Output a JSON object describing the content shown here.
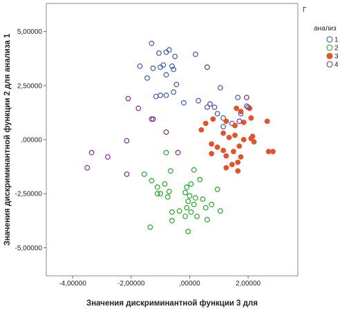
{
  "chart_data": {
    "type": "scatter",
    "xlabel": "Значения дискриминантной функции 3 для",
    "ylabel": "Значения дискриминантной функции 2 для анализа 1",
    "xlim": [
      -4.9,
      3.7
    ],
    "ylim": [
      -6.3,
      6.3
    ],
    "x_ticks": [
      -4,
      -2,
      0,
      2
    ],
    "x_tick_labels": [
      "-4,00000",
      "-2,00000",
      ",00000",
      "2,00000"
    ],
    "y_ticks": [
      5,
      2.5,
      0,
      -2.5,
      -5
    ],
    "y_tick_labels": [
      "5,00000",
      "2,50000",
      ",00000",
      "-2,50000",
      "-5,00000"
    ],
    "grid": false,
    "legend": {
      "title_top": "Г",
      "title": "анализ",
      "position": "right"
    },
    "series": [
      {
        "name": "1",
        "color": "#3a5aa8",
        "filled": false,
        "points": [
          [
            -1.3,
            4.45
          ],
          [
            -0.8,
            4.05
          ],
          [
            -0.7,
            4.15
          ],
          [
            -0.5,
            3.85
          ],
          [
            -0.9,
            3.45
          ],
          [
            -0.6,
            3.4
          ],
          [
            -1.7,
            3.4
          ],
          [
            -1.25,
            3.3
          ],
          [
            -1.0,
            3.35
          ],
          [
            0.2,
            3.95
          ],
          [
            -1.05,
            4.0
          ],
          [
            -1.45,
            2.85
          ],
          [
            -0.8,
            3.0
          ],
          [
            -0.55,
            3.25
          ],
          [
            -0.45,
            2.55
          ],
          [
            -0.55,
            2.2
          ],
          [
            -0.2,
            1.7
          ],
          [
            0.3,
            1.8
          ],
          [
            -0.8,
            2.05
          ],
          [
            -1.15,
            2.0
          ],
          [
            -1.0,
            2.05
          ],
          [
            0.6,
            1.5
          ],
          [
            1.05,
            2.4
          ],
          [
            1.65,
            1.95
          ],
          [
            0.85,
            1.5
          ],
          [
            0.95,
            1.2
          ],
          [
            1.15,
            1.0
          ],
          [
            1.45,
            0.75
          ],
          [
            1.75,
            1.2
          ],
          [
            1.15,
            0.6
          ],
          [
            1.95,
            1.55
          ]
        ]
      },
      {
        "name": "2",
        "color": "#22a32a",
        "filled": false,
        "points": [
          [
            -1.55,
            -1.6
          ],
          [
            -1.3,
            -1.9
          ],
          [
            -1.1,
            -2.2
          ],
          [
            -0.85,
            -2.05
          ],
          [
            -0.7,
            -2.4
          ],
          [
            -0.65,
            -1.45
          ],
          [
            -0.8,
            -0.6
          ],
          [
            -1.0,
            -2.5
          ],
          [
            -0.75,
            -2.65
          ],
          [
            -0.1,
            -2.2
          ],
          [
            0.05,
            -2.05
          ],
          [
            0.15,
            -1.4
          ],
          [
            0.35,
            -1.85
          ],
          [
            -0.15,
            -2.45
          ],
          [
            0.0,
            -2.6
          ],
          [
            0.2,
            -2.7
          ],
          [
            -0.05,
            -2.85
          ],
          [
            0.45,
            -2.75
          ],
          [
            0.15,
            -3.0
          ],
          [
            -0.1,
            -3.15
          ],
          [
            0.05,
            -3.35
          ],
          [
            0.55,
            -3.15
          ],
          [
            0.75,
            -3.0
          ],
          [
            0.95,
            -2.3
          ],
          [
            1.05,
            -3.3
          ],
          [
            -0.6,
            -3.35
          ],
          [
            -0.35,
            -3.3
          ],
          [
            -0.15,
            -3.55
          ],
          [
            0.25,
            -3.55
          ],
          [
            -0.6,
            -3.75
          ],
          [
            0.6,
            -3.7
          ],
          [
            -1.35,
            -4.05
          ],
          [
            -0.05,
            -4.25
          ],
          [
            -1.1,
            -2.5
          ]
        ]
      },
      {
        "name": "3",
        "color": "#e0542c",
        "filled": true,
        "points": [
          [
            0.4,
            0.45
          ],
          [
            0.55,
            0.75
          ],
          [
            0.8,
            0.95
          ],
          [
            1.25,
            0.85
          ],
          [
            1.55,
            0.65
          ],
          [
            1.85,
            0.8
          ],
          [
            1.75,
            1.3
          ],
          [
            1.6,
            1.45
          ],
          [
            2.05,
            1.45
          ],
          [
            2.1,
            1.0
          ],
          [
            2.65,
            0.85
          ],
          [
            1.15,
            0.3
          ],
          [
            1.35,
            0.1
          ],
          [
            1.55,
            0.2
          ],
          [
            1.85,
            0.0
          ],
          [
            2.1,
            0.05
          ],
          [
            2.2,
            -0.1
          ],
          [
            2.15,
            0.15
          ],
          [
            0.75,
            -0.2
          ],
          [
            0.95,
            -0.35
          ],
          [
            1.15,
            -0.5
          ],
          [
            1.5,
            -0.55
          ],
          [
            1.25,
            -0.75
          ],
          [
            0.75,
            -0.65
          ],
          [
            1.45,
            -1.15
          ],
          [
            1.65,
            -1.05
          ],
          [
            1.65,
            -1.45
          ],
          [
            1.75,
            -0.8
          ],
          [
            2.7,
            -0.55
          ],
          [
            2.85,
            -0.55
          ],
          [
            1.25,
            -1.3
          ],
          [
            1.7,
            -0.3
          ]
        ]
      },
      {
        "name": "4",
        "color": "#7a2a8a",
        "filled": false,
        "points": [
          [
            -2.1,
            1.9
          ],
          [
            -1.75,
            1.45
          ],
          [
            -0.8,
            0.35
          ],
          [
            -0.4,
            -0.6
          ],
          [
            -3.5,
            -1.3
          ],
          [
            -3.35,
            -0.6
          ],
          [
            -2.8,
            -0.8
          ],
          [
            -2.15,
            -0.05
          ],
          [
            -2.15,
            -1.6
          ],
          [
            -1.3,
            0.95
          ],
          [
            -1.25,
            0.95
          ],
          [
            0.6,
            3.35
          ],
          [
            1.7,
            0.85
          ],
          [
            1.95,
            1.95
          ],
          [
            2.0,
            1.5
          ],
          [
            0.7,
            1.65
          ]
        ]
      }
    ]
  }
}
